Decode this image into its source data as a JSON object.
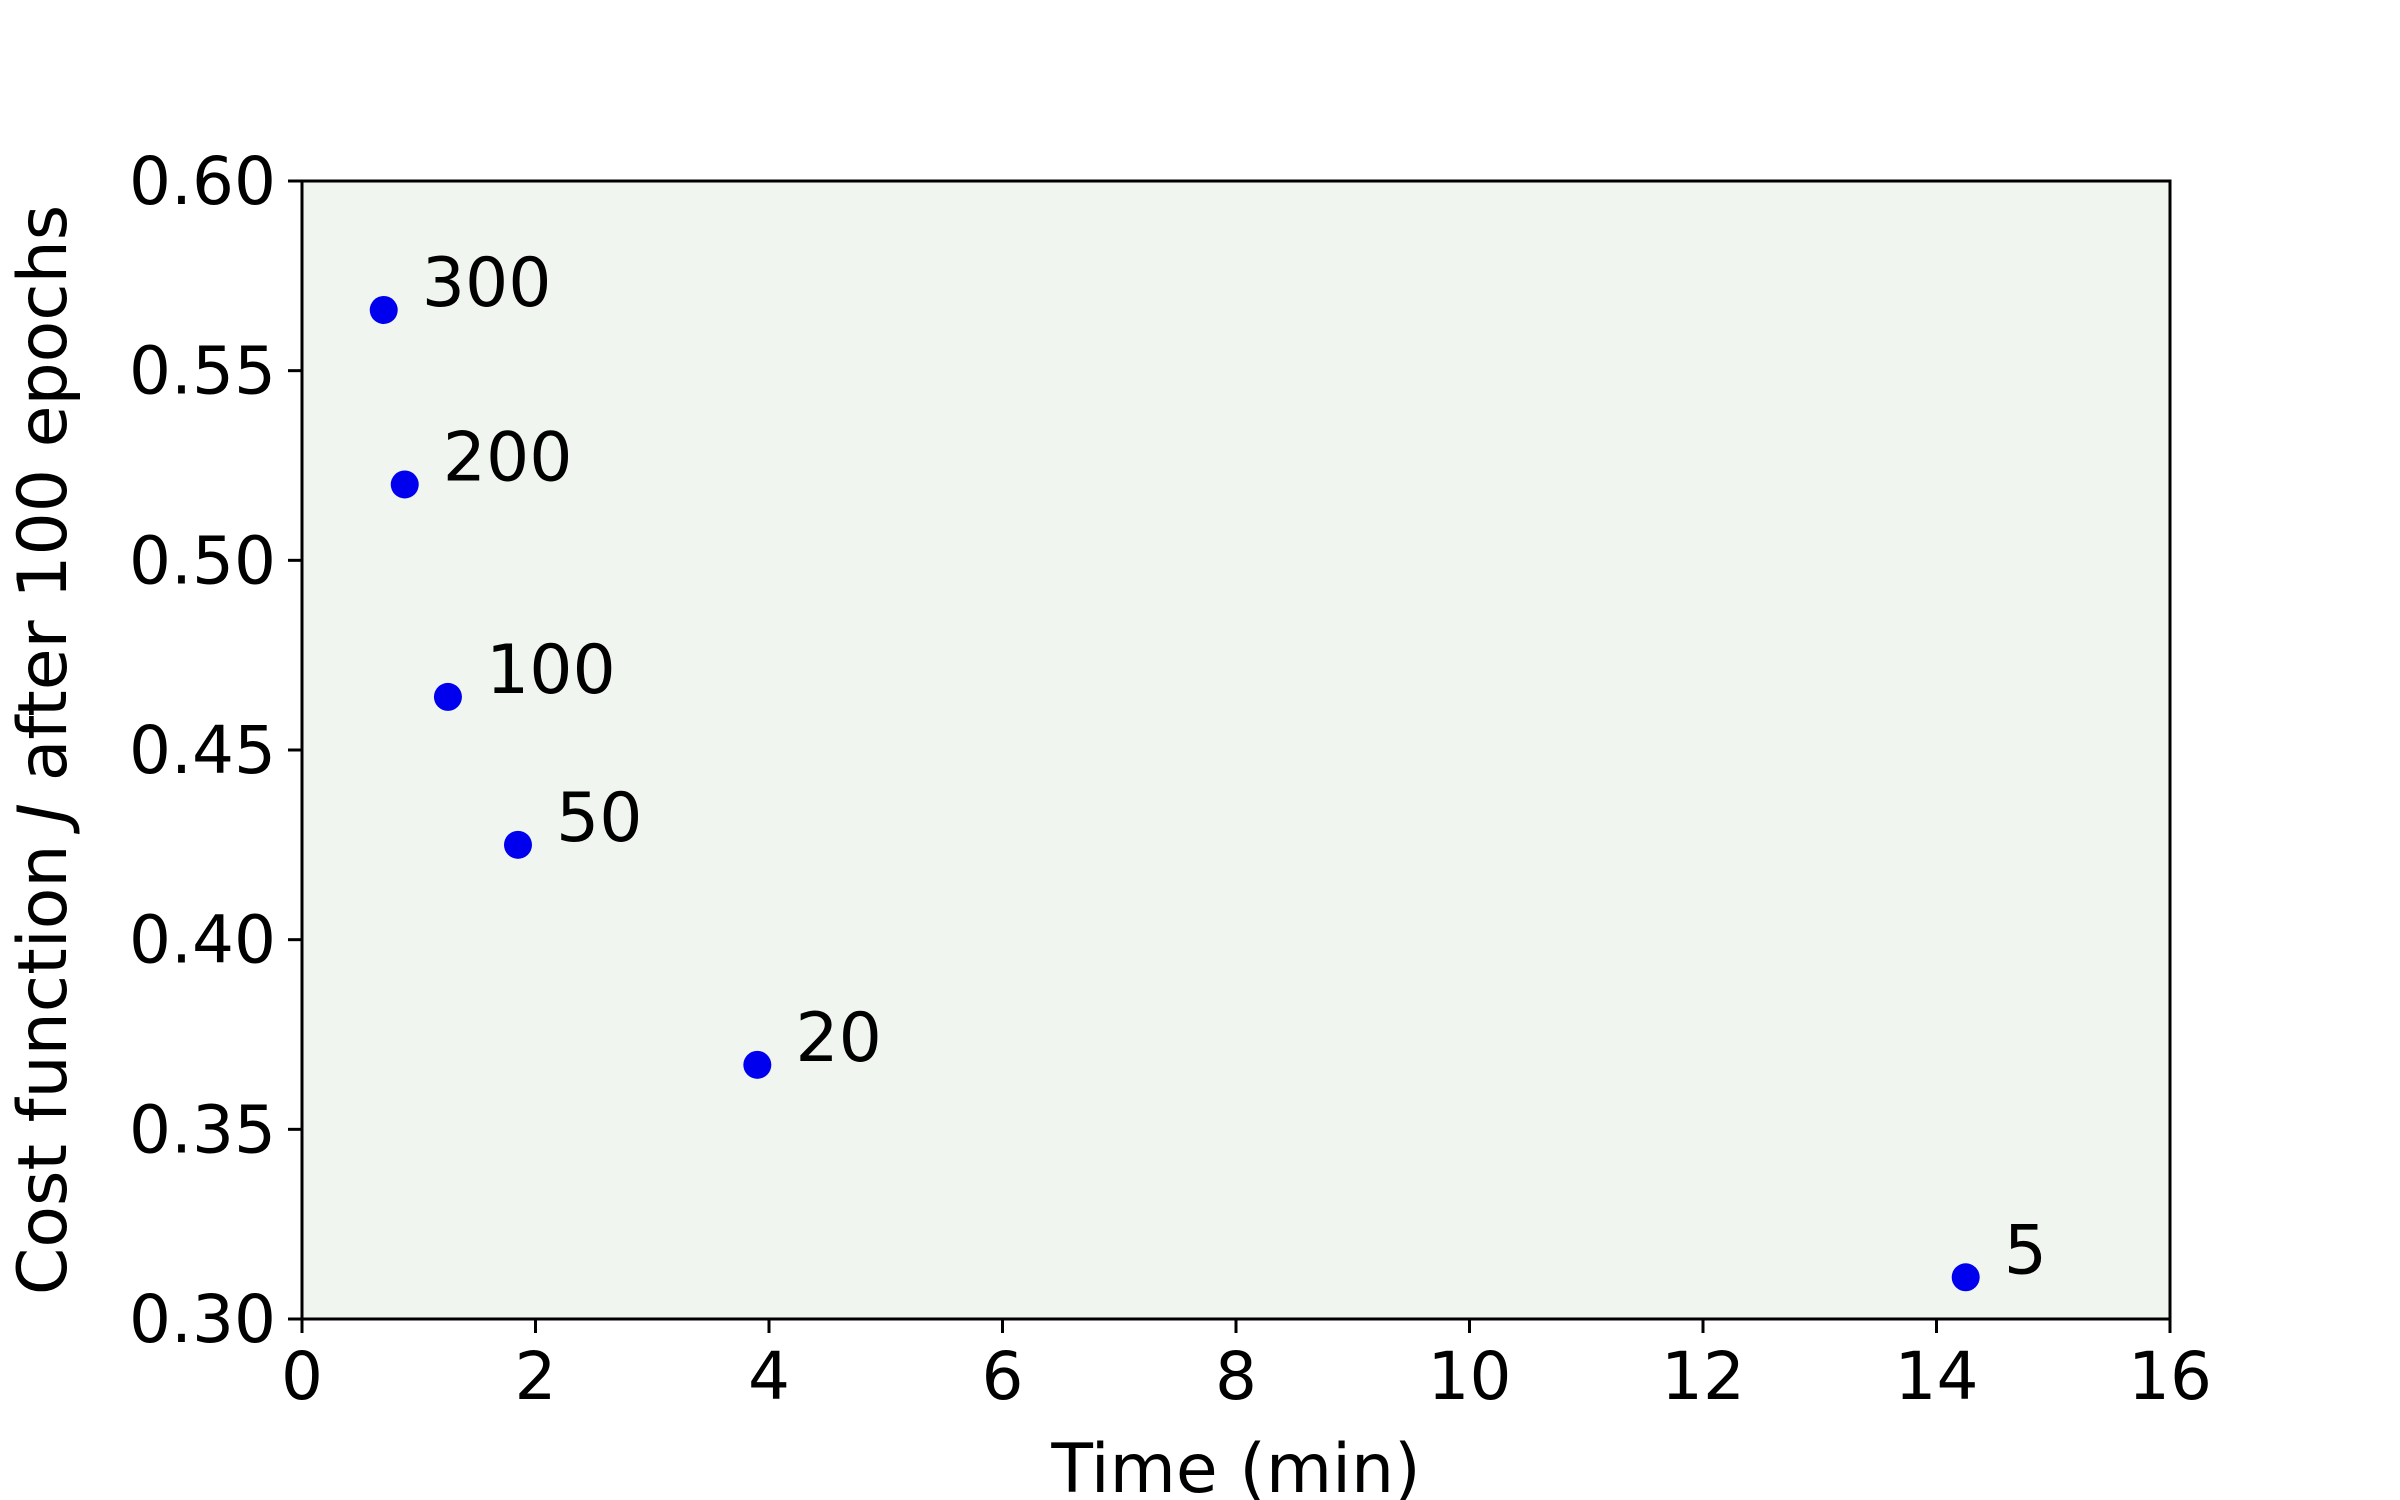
{
  "chart_data": {
    "type": "scatter",
    "title": "",
    "xlabel": "Time (min)",
    "ylabel_prefix": "Cost function ",
    "ylabel_symbol": "J",
    "ylabel_suffix": " after 100 epochs",
    "xlim": [
      0,
      16
    ],
    "ylim": [
      0.3,
      0.6
    ],
    "x_ticks": [
      0,
      2,
      4,
      6,
      8,
      10,
      12,
      14,
      16
    ],
    "x_tick_labels": [
      "0",
      "2",
      "4",
      "6",
      "8",
      "10",
      "12",
      "14",
      "16"
    ],
    "y_ticks": [
      0.3,
      0.35,
      0.4,
      0.45,
      0.5,
      0.55,
      0.6
    ],
    "y_tick_labels": [
      "0.30",
      "0.35",
      "0.40",
      "0.45",
      "0.50",
      "0.55",
      "0.60"
    ],
    "grid": false,
    "plot_background": "#f0f5ef",
    "marker_color": "#0000ee",
    "points": [
      {
        "x": 0.7,
        "y": 0.566,
        "label": "300"
      },
      {
        "x": 0.88,
        "y": 0.52,
        "label": "200"
      },
      {
        "x": 1.25,
        "y": 0.464,
        "label": "100"
      },
      {
        "x": 1.85,
        "y": 0.425,
        "label": "50"
      },
      {
        "x": 3.9,
        "y": 0.367,
        "label": "20"
      },
      {
        "x": 14.25,
        "y": 0.311,
        "label": "5"
      }
    ]
  }
}
